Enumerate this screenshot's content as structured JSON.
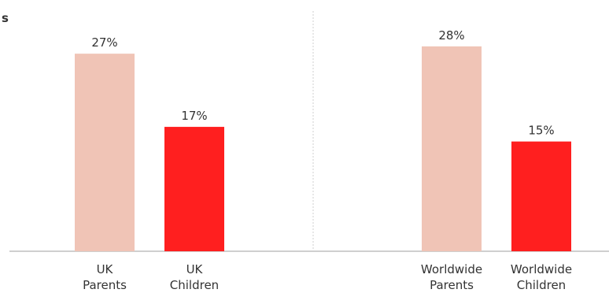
{
  "chart_data": {
    "type": "bar",
    "title_fragment": "s",
    "categories": [
      [
        "UK",
        "Parents"
      ],
      [
        "UK",
        "Children"
      ],
      [
        "Worldwide",
        "Parents"
      ],
      [
        "Worldwide",
        "Children"
      ]
    ],
    "values": [
      27,
      17,
      28,
      15
    ],
    "value_labels": [
      "27%",
      "17%",
      "28%",
      "15%"
    ],
    "unit": "%",
    "colors": [
      "#F0C4B6",
      "#FF1F1F",
      "#F0C4B6",
      "#FF1F1F"
    ],
    "ylim": [
      0,
      30
    ],
    "grid": false,
    "groups": [
      "UK",
      "Worldwide"
    ]
  }
}
